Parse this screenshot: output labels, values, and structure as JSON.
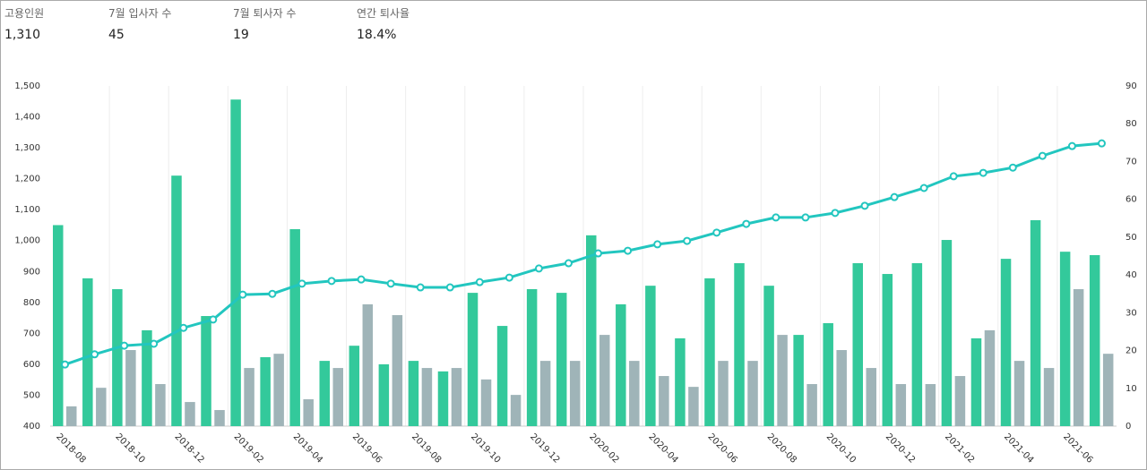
{
  "kpis": [
    {
      "label": "고용인원",
      "value": "1,310"
    },
    {
      "label": "7월 입사자 수",
      "value": "45"
    },
    {
      "label": "7월 퇴사자 수",
      "value": "19"
    },
    {
      "label": "연간 퇴사율",
      "value": "18.4%"
    }
  ],
  "chart_data": {
    "type": "bar",
    "categories": [
      "2018-08",
      null,
      "2018-10",
      null,
      "2018-12",
      null,
      "2019-02",
      null,
      "2019-04",
      null,
      "2019-06",
      null,
      "2019-08",
      null,
      "2019-10",
      null,
      "2019-12",
      null,
      "2020-02",
      null,
      "2020-04",
      null,
      "2020-06",
      null,
      "2020-08",
      null,
      "2020-10",
      null,
      "2020-12",
      null,
      "2021-02",
      null,
      "2021-04",
      null,
      "2021-06",
      null
    ],
    "series": [
      {
        "color": "#33c99b",
        "values": [
          1050,
          878,
          843,
          710,
          1210,
          756,
          1456,
          623,
          1037,
          611,
          660,
          600,
          611,
          577,
          831,
          724,
          843,
          831,
          1017,
          794,
          854,
          684,
          878,
          927,
          854,
          695,
          733,
          927,
          892,
          927,
          1002,
          684,
          941,
          1066,
          964,
          953
        ]
      },
      {
        "color": "#9fb4b8",
        "values": [
          464,
          524,
          646,
          536,
          478,
          452,
          588,
          634,
          487,
          588,
          794,
          759,
          588,
          588,
          551,
          501,
          611,
          611,
          695,
          611,
          562,
          527,
          611,
          611,
          695,
          536,
          646,
          588,
          536,
          536,
          562,
          710,
          611,
          588,
          843,
          634
        ]
      },
      {
        "color": "#22c6bf",
        "type": "line",
        "axis": "y2",
        "values": [
          16.3,
          19,
          21.3,
          21.8,
          26,
          28.2,
          34.8,
          35,
          37.7,
          38.4,
          38.8,
          37.7,
          36.7,
          36.7,
          38.1,
          39.3,
          41.7,
          43.1,
          45.7,
          46.4,
          48.1,
          49,
          51.2,
          53.5,
          55.2,
          55.2,
          56.4,
          58.3,
          60.6,
          63,
          66.1,
          67,
          68.4,
          71.5,
          74.1,
          74.8
        ]
      }
    ],
    "ylim": [
      400,
      1500
    ],
    "yticks": [
      400,
      500,
      600,
      700,
      800,
      900,
      {
        "value": 1000,
        "label": "1,000"
      },
      {
        "value": 1100,
        "label": "1,100"
      },
      {
        "value": 1200,
        "label": "1,200"
      },
      {
        "value": 1300,
        "label": "1,300"
      },
      {
        "value": 1400,
        "label": "1,400"
      },
      {
        "value": 1500,
        "label": "1,500"
      }
    ],
    "y2lim": [
      0,
      90
    ],
    "y2ticks": [
      0,
      10,
      20,
      30,
      40,
      50,
      60,
      70,
      80,
      90
    ]
  }
}
